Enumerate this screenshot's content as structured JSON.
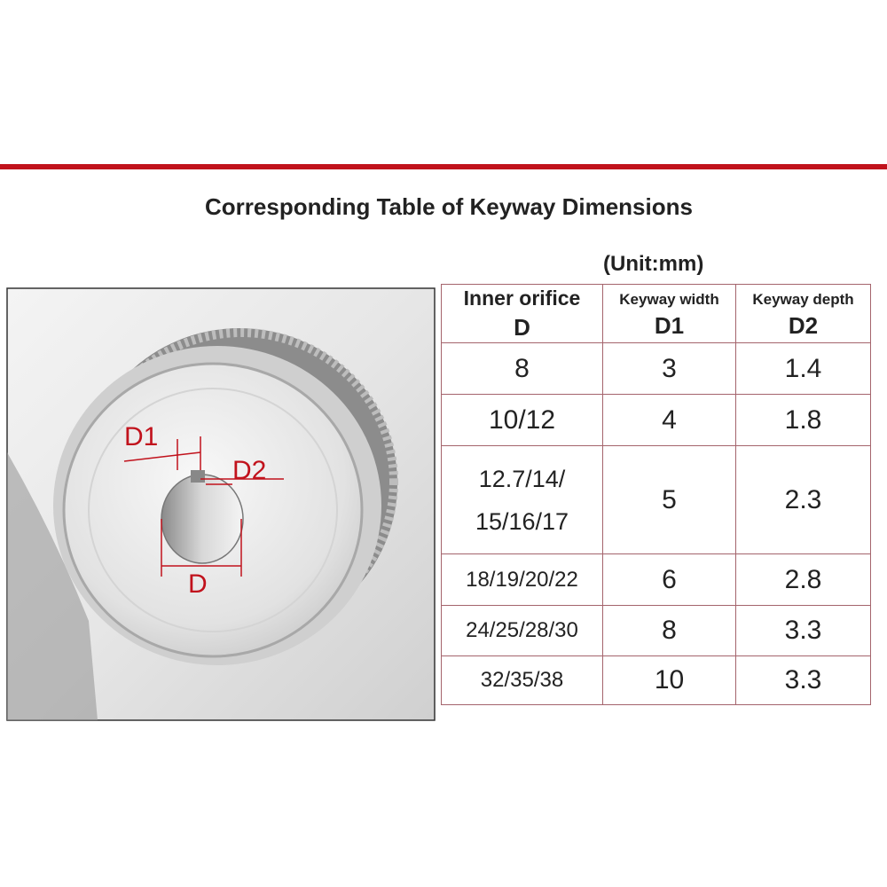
{
  "header": {
    "title": "Corresponding Table of Keyway Dimensions",
    "unit": "(Unit:mm)"
  },
  "diagram": {
    "labels": [
      "D1",
      "D2",
      "D"
    ]
  },
  "table": {
    "columns": [
      {
        "name": "Inner orifice",
        "symbol": "D"
      },
      {
        "name": "Keyway width",
        "symbol": "D1"
      },
      {
        "name": "Keyway depth",
        "symbol": "D2"
      }
    ],
    "rows": [
      [
        8,
        3,
        1.4
      ],
      [
        "10/12",
        4,
        1.8
      ],
      [
        [
          "12.7/14/",
          "15/16/17"
        ],
        5,
        2.3
      ],
      [
        "18/19/20/22",
        6,
        2.8
      ],
      [
        "24/25/28/30",
        8,
        3.3
      ],
      [
        "32/35/38",
        10,
        3.3
      ]
    ]
  }
}
